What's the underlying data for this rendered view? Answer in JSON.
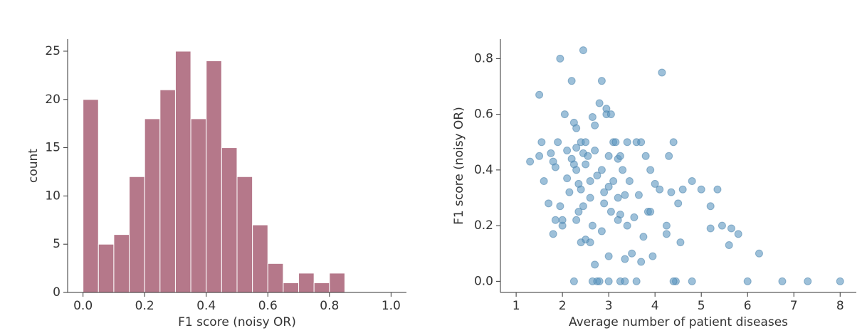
{
  "chart_data": [
    {
      "type": "histogram",
      "xlabel": "F1 score (noisy OR)",
      "ylabel": "count",
      "color": "#b5788a",
      "bins": [
        0.0,
        0.05,
        0.1,
        0.15,
        0.2,
        0.25,
        0.3,
        0.35,
        0.4,
        0.45,
        0.5,
        0.55,
        0.6,
        0.65,
        0.7,
        0.75,
        0.8,
        0.85
      ],
      "counts": [
        20,
        5,
        6,
        12,
        18,
        21,
        25,
        18,
        24,
        15,
        12,
        7,
        3,
        1,
        2,
        1,
        2
      ],
      "xlim": [
        -0.05,
        1.05
      ],
      "ylim": [
        0,
        26.25
      ],
      "xticks": [
        {
          "value": 0.0,
          "label": "0.0"
        },
        {
          "value": 0.2,
          "label": "0.2"
        },
        {
          "value": 0.4,
          "label": "0.4"
        },
        {
          "value": 0.6,
          "label": "0.6"
        },
        {
          "value": 0.8,
          "label": "0.8"
        },
        {
          "value": 1.0,
          "label": "1.0"
        }
      ],
      "yticks": [
        0,
        5,
        10,
        15,
        20,
        25
      ]
    },
    {
      "type": "scatter",
      "xlabel": "Average number of patient diseases",
      "ylabel": "F1 score (noisy OR)",
      "color": "#5b96bf",
      "x": [
        1.3,
        1.5,
        1.55,
        1.5,
        1.6,
        1.7,
        1.75,
        1.8,
        1.85,
        1.9,
        1.85,
        1.95,
        1.95,
        2.0,
        2.0,
        2.05,
        2.1,
        2.1,
        2.15,
        2.2,
        2.2,
        2.25,
        2.25,
        2.3,
        2.3,
        2.3,
        2.35,
        2.35,
        2.4,
        2.4,
        2.45,
        2.45,
        2.45,
        2.5,
        2.5,
        2.5,
        2.55,
        2.6,
        2.6,
        2.65,
        2.65,
        2.7,
        2.7,
        2.7,
        2.75,
        2.8,
        2.85,
        2.85,
        2.9,
        2.9,
        2.95,
        2.95,
        3.0,
        3.0,
        3.05,
        3.05,
        3.1,
        3.1,
        3.15,
        3.2,
        3.2,
        3.25,
        3.25,
        3.3,
        3.35,
        3.4,
        3.4,
        3.45,
        3.5,
        3.55,
        3.6,
        3.65,
        3.7,
        3.75,
        3.8,
        3.85,
        3.9,
        3.95,
        4.0,
        4.1,
        4.15,
        4.25,
        4.25,
        4.3,
        4.35,
        4.4,
        4.45,
        4.5,
        4.55,
        4.6,
        4.8,
        5.0,
        5.2,
        5.2,
        5.35,
        5.45,
        5.6,
        5.65,
        5.8,
        6.0,
        6.25,
        6.75,
        7.3,
        8.0,
        2.25,
        2.65,
        2.75,
        2.8,
        3.0,
        3.25,
        3.35,
        3.6,
        4.4,
        4.8,
        2.85,
        3.0,
        2.4,
        2.6,
        3.7,
        1.8,
        2.3,
        3.35,
        3.9,
        3.2
      ],
      "y": [
        0.43,
        0.67,
        0.5,
        0.45,
        0.36,
        0.28,
        0.46,
        0.43,
        0.41,
        0.5,
        0.22,
        0.8,
        0.27,
        0.2,
        0.22,
        0.6,
        0.47,
        0.37,
        0.32,
        0.72,
        0.44,
        0.57,
        0.42,
        0.55,
        0.48,
        0.4,
        0.35,
        0.25,
        0.5,
        0.33,
        0.83,
        0.46,
        0.27,
        0.5,
        0.42,
        0.15,
        0.45,
        0.36,
        0.3,
        0.59,
        0.2,
        0.56,
        0.47,
        0.06,
        0.38,
        0.64,
        0.72,
        0.4,
        0.32,
        0.28,
        0.6,
        0.62,
        0.45,
        0.34,
        0.6,
        0.25,
        0.5,
        0.36,
        0.5,
        0.44,
        0.3,
        0.45,
        0.24,
        0.4,
        0.31,
        0.5,
        0.2,
        0.36,
        0.1,
        0.23,
        0.5,
        0.31,
        0.5,
        0.16,
        0.45,
        0.25,
        0.4,
        0.09,
        0.35,
        0.33,
        0.75,
        0.2,
        0.17,
        0.45,
        0.32,
        0.5,
        0.0,
        0.28,
        0.14,
        0.33,
        0.36,
        0.33,
        0.27,
        0.19,
        0.33,
        0.2,
        0.13,
        0.19,
        0.17,
        0.0,
        0.1,
        0.0,
        0.0,
        0.0,
        0.0,
        0.0,
        0.0,
        0.0,
        0.0,
        0.0,
        0.0,
        0.0,
        0.0,
        0.0,
        0.18,
        0.09,
        0.14,
        0.14,
        0.07,
        0.17,
        0.22,
        0.08,
        0.25,
        0.22
      ],
      "xlim": [
        0.66,
        8.35
      ],
      "ylim": [
        -0.04,
        0.87
      ],
      "xticks": [
        1,
        2,
        3,
        4,
        5,
        6,
        7,
        8
      ],
      "yticks": [
        {
          "value": 0.0,
          "label": "0.0"
        },
        {
          "value": 0.2,
          "label": "0.2"
        },
        {
          "value": 0.4,
          "label": "0.4"
        },
        {
          "value": 0.6,
          "label": "0.6"
        },
        {
          "value": 0.8,
          "label": "0.8"
        }
      ]
    }
  ]
}
